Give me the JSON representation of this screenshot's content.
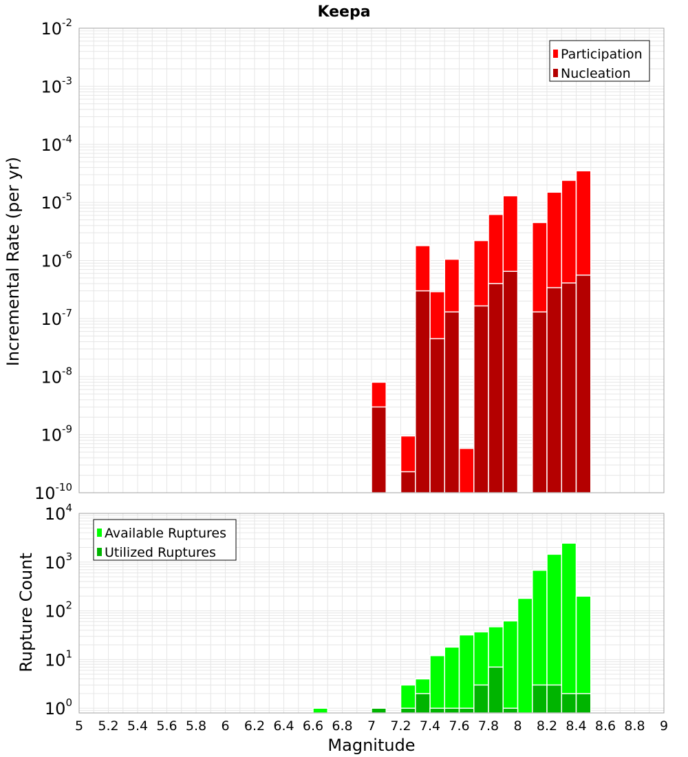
{
  "colors": {
    "participation": "#ff0000",
    "nucleation": "#b40000",
    "available": "#00ff00",
    "utilized": "#00b400",
    "grid": "#e6e6e6",
    "frame": "#a0a0a0"
  },
  "chart_data": [
    {
      "type": "bar",
      "title": "Keepa",
      "xlabel": "",
      "ylabel": "Incremental Rate (per yr)",
      "yscale": "log",
      "ylim": [
        1e-10,
        0.01
      ],
      "xlim": [
        5,
        9
      ],
      "bar_width": 0.1,
      "grid": true,
      "legend": "top-right",
      "yticks": [
        {
          "base": "10",
          "exp": "-10",
          "value": 1e-10
        },
        {
          "base": "10",
          "exp": "-9",
          "value": 1e-09
        },
        {
          "base": "10",
          "exp": "-8",
          "value": 1e-08
        },
        {
          "base": "10",
          "exp": "-7",
          "value": 1e-07
        },
        {
          "base": "10",
          "exp": "-6",
          "value": 1e-06
        },
        {
          "base": "10",
          "exp": "-5",
          "value": 1e-05
        },
        {
          "base": "10",
          "exp": "-4",
          "value": 0.0001
        },
        {
          "base": "10",
          "exp": "-3",
          "value": 0.001
        },
        {
          "base": "10",
          "exp": "-2",
          "value": 0.01
        }
      ],
      "series": [
        {
          "name": "Participation",
          "x": [
            7.05,
            7.25,
            7.35,
            7.45,
            7.55,
            7.65,
            7.75,
            7.85,
            7.95,
            8.15,
            8.25,
            8.35,
            8.45
          ],
          "values": [
            8e-09,
            9.5e-10,
            1.8e-06,
            2.9e-07,
            1.05e-06,
            5.8e-10,
            2.2e-06,
            6.2e-06,
            1.3e-05,
            4.5e-06,
            1.5e-05,
            2.4e-05,
            3.5e-05
          ]
        },
        {
          "name": "Nucleation",
          "x": [
            7.05,
            7.25,
            7.35,
            7.45,
            7.55,
            7.75,
            7.85,
            7.95,
            8.15,
            8.25,
            8.35,
            8.45
          ],
          "values": [
            3e-09,
            2.3e-10,
            3e-07,
            4.5e-08,
            1.3e-07,
            1.65e-07,
            4e-07,
            6.5e-07,
            1.3e-07,
            3.4e-07,
            4.1e-07,
            5.6e-07
          ]
        }
      ]
    },
    {
      "type": "bar",
      "title": "",
      "xlabel": "Magnitude",
      "ylabel": "Rupture Count",
      "yscale": "log",
      "ylim": [
        0.8,
        10000
      ],
      "xlim": [
        5,
        9
      ],
      "bar_width": 0.1,
      "grid": true,
      "legend": "top-left",
      "xticks": [
        "5",
        "5.2",
        "5.4",
        "5.6",
        "5.8",
        "6",
        "6.2",
        "6.4",
        "6.6",
        "6.8",
        "7",
        "7.2",
        "7.4",
        "7.6",
        "7.8",
        "8",
        "8.2",
        "8.4",
        "8.6",
        "8.8",
        "9"
      ],
      "yticks": [
        {
          "base": "10",
          "exp": "0",
          "value": 1
        },
        {
          "base": "10",
          "exp": "1",
          "value": 10
        },
        {
          "base": "10",
          "exp": "2",
          "value": 100
        },
        {
          "base": "10",
          "exp": "3",
          "value": 1000
        },
        {
          "base": "10",
          "exp": "4",
          "value": 10000
        }
      ],
      "series": [
        {
          "name": "Available Ruptures",
          "x": [
            6.65,
            7.05,
            7.25,
            7.35,
            7.45,
            7.55,
            7.65,
            7.75,
            7.85,
            7.95,
            8.05,
            8.15,
            8.25,
            8.35,
            8.45
          ],
          "values": [
            1,
            1,
            3,
            4,
            12,
            18,
            32,
            37,
            47,
            62,
            180,
            680,
            1450,
            2450,
            200
          ]
        },
        {
          "name": "Utilized Ruptures",
          "x": [
            7.05,
            7.25,
            7.35,
            7.45,
            7.55,
            7.65,
            7.75,
            7.85,
            7.95,
            8.15,
            8.25,
            8.35,
            8.45
          ],
          "values": [
            1,
            1,
            2,
            1,
            1,
            1,
            3,
            7,
            1,
            3,
            3,
            2,
            2
          ]
        }
      ]
    }
  ]
}
